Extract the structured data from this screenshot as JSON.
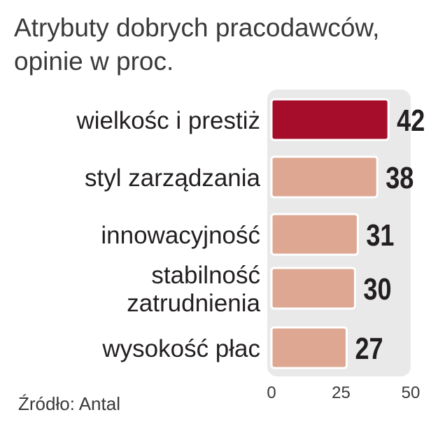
{
  "title_line1": "Atrybuty dobrych pracodawców,",
  "title_line2": "opinie w proc.",
  "source": "Źródło: Antal",
  "chart_data": {
    "type": "bar",
    "orientation": "horizontal",
    "categories": [
      [
        "wielkośc i prestiż"
      ],
      [
        "styl zarządzania"
      ],
      [
        "innowacyjność"
      ],
      [
        "stabilność",
        "zatrudnienia"
      ],
      [
        "wysokość płac"
      ]
    ],
    "values": [
      42,
      38,
      31,
      30,
      27
    ],
    "value_labels": [
      "42",
      "38",
      "31",
      "30",
      "27"
    ],
    "tick_labels": [
      "0",
      "25",
      "50"
    ],
    "ticks": [
      0,
      25,
      50
    ],
    "xlim": [
      0,
      50
    ],
    "grid": false,
    "legend": "none",
    "colors": {
      "highlight": "#a50d2a",
      "bar": "#dea791",
      "bar_border": "#ffffff",
      "plot_bg": "#e9e9ea"
    }
  }
}
